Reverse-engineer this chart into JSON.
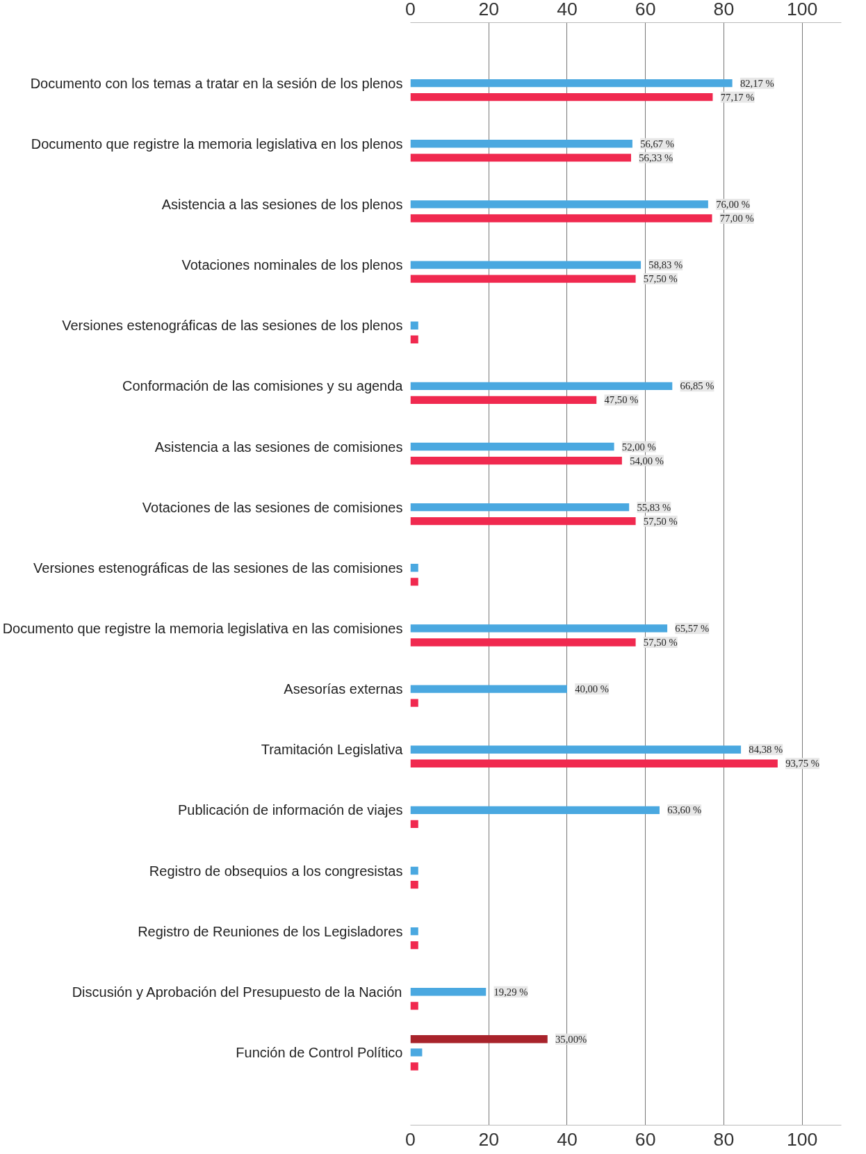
{
  "chart_data": {
    "type": "bar",
    "orientation": "horizontal",
    "categories": [
      "Documento con los temas a tratar en la sesión de los plenos",
      "Documento que registre la memoria legislativa en los plenos",
      "Asistencia a las sesiones de los plenos",
      "Votaciones nominales de los plenos",
      "Versiones estenográficas de las sesiones de los plenos",
      "Conformación de las comisiones y su agenda",
      "Asistencia a las sesiones de comisiones",
      "Votaciones de las sesiones de comisiones",
      "Versiones estenográficas de las sesiones de las comisiones",
      "Documento que registre la memoria legislativa en las comisiones",
      "Asesorías externas",
      "Tramitación Legislativa",
      "Publicación de información de viajes",
      "Registro de obsequios a los congresistas",
      "Registro de Reuniones de los Legisladores",
      "Discusión y Aprobación del Presupuesto de la Nación",
      "Función de Control Político"
    ],
    "series": [
      {
        "color": "#4aa8e0",
        "values": [
          82.17,
          56.67,
          76.0,
          58.83,
          2,
          66.85,
          52.0,
          55.83,
          2,
          65.57,
          40.0,
          84.38,
          63.6,
          2,
          2,
          19.29,
          3
        ],
        "value_labels": [
          "82,17 %",
          "56,67 %",
          "76,00 %",
          "58,83 %",
          null,
          "66,85 %",
          "52,00 %",
          "55,83 %",
          null,
          "65,57 %",
          "40,00 %",
          "84,38 %",
          "63,60 %",
          null,
          null,
          "19,29 %",
          null
        ]
      },
      {
        "color": "#f0294f",
        "values": [
          77.17,
          56.33,
          77.0,
          57.5,
          2,
          47.5,
          54.0,
          57.5,
          2,
          57.5,
          2,
          93.75,
          2,
          2,
          2,
          2,
          2
        ],
        "value_labels": [
          "77,17 %",
          "56,33 %",
          "77,00 %",
          "57,50 %",
          null,
          "47,50 %",
          "54,00 %",
          "57,50 %",
          null,
          "57,50 %",
          null,
          "93,75 %",
          null,
          null,
          null,
          null,
          null
        ]
      },
      {
        "color": "#a8232b",
        "values": [
          null,
          null,
          null,
          null,
          null,
          null,
          null,
          null,
          null,
          null,
          null,
          null,
          null,
          null,
          null,
          null,
          35.0
        ],
        "value_labels": [
          null,
          null,
          null,
          null,
          null,
          null,
          null,
          null,
          null,
          null,
          null,
          null,
          null,
          null,
          null,
          null,
          "35,00%"
        ]
      }
    ],
    "xlim": [
      0,
      110
    ],
    "xticks": [
      0,
      20,
      40,
      60,
      80,
      100
    ],
    "x2lim": [
      0,
      110
    ],
    "x2ticks": [
      0,
      20,
      40,
      60,
      80,
      100
    ],
    "grid": "x"
  }
}
